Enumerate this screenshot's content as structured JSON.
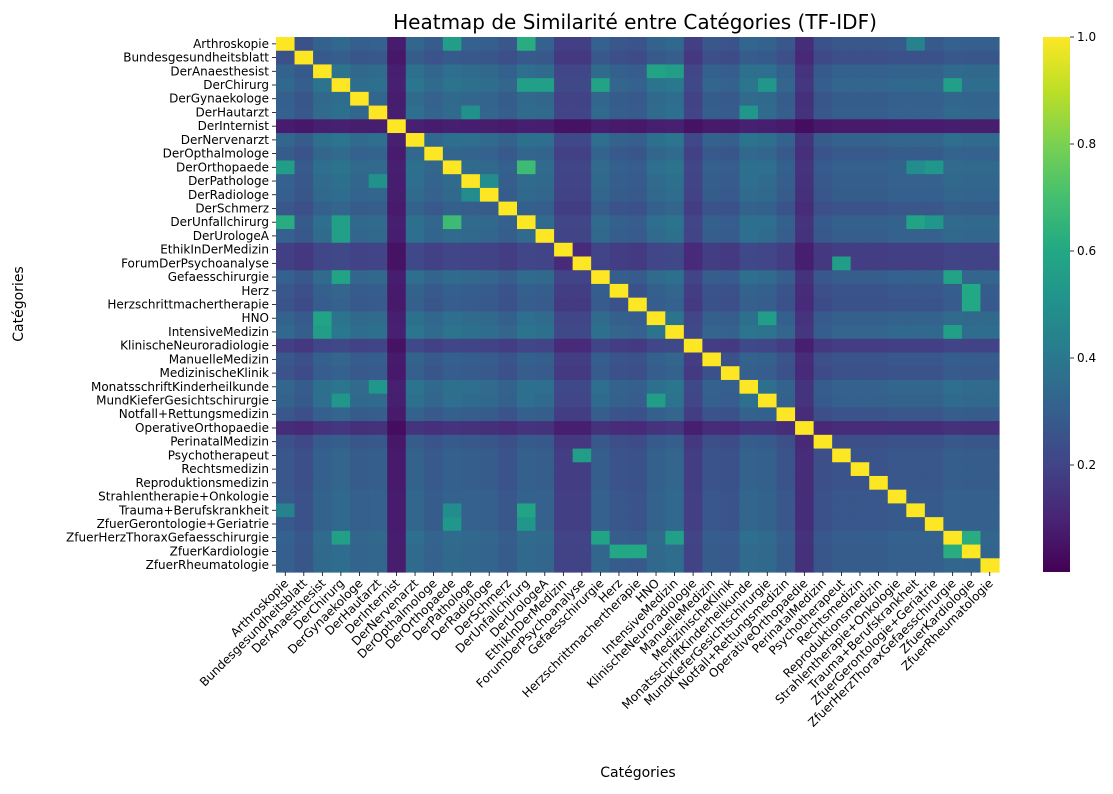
{
  "chart_data": {
    "type": "heatmap",
    "title": "Heatmap de Similarité entre Catégories (TF-IDF)",
    "xlabel": "Catégories",
    "ylabel": "Catégories",
    "colormap": "viridis",
    "colorbar": {
      "min": 0.0,
      "max": 1.0,
      "ticks": [
        "0.2",
        "0.4",
        "0.6",
        "0.8",
        "1.0"
      ]
    },
    "categories": [
      "Arthroskopie",
      "Bundesgesundheitsblatt",
      "DerAnaesthesist",
      "DerChirurg",
      "DerGynaekologe",
      "DerHautarzt",
      "DerInternist",
      "DerNervenarzt",
      "DerOpthalmologe",
      "DerOrthopaede",
      "DerPathologe",
      "DerRadiologe",
      "DerSchmerz",
      "DerUnfallchirurg",
      "DerUrologeA",
      "EthikInDerMedizin",
      "ForumDerPsychoanalyse",
      "Gefaesschirurgie",
      "Herz",
      "Herzschrittmachertherapie",
      "HNO",
      "IntensiveMedizin",
      "KlinischeNeuroradiologie",
      "ManuelleMedizin",
      "MedizinischeKlinik",
      "MonatsschriftKinderheilkunde",
      "MundKieferGesichtschirurgie",
      "Notfall+Rettungsmedizin",
      "OperativeOrthopaedie",
      "PerinatalMedizin",
      "Psychotherapeut",
      "Rechtsmedizin",
      "Reproduktionsmedizin",
      "Strahlentherapie+Onkologie",
      "Trauma+Berufskrankheit",
      "ZfuerGerontologie+Geriatrie",
      "ZfuerHerzThoraxGefaesschirurgie",
      "ZfuerKardiologie",
      "ZfuerRheumatologie"
    ],
    "base_similarity": [
      0.28,
      0.22,
      0.36,
      0.4,
      0.32,
      0.34,
      0.02,
      0.38,
      0.3,
      0.36,
      0.34,
      0.32,
      0.26,
      0.36,
      0.34,
      0.12,
      0.12,
      0.34,
      0.26,
      0.24,
      0.36,
      0.4,
      0.12,
      0.26,
      0.24,
      0.38,
      0.36,
      0.26,
      0.06,
      0.22,
      0.26,
      0.26,
      0.26,
      0.28,
      0.28,
      0.28,
      0.34,
      0.32,
      0.32
    ],
    "diagonal": 1.0,
    "notable_pairs": [
      [
        "Arthroskopie",
        "DerOrthopaede",
        0.55
      ],
      [
        "Arthroskopie",
        "DerUnfallchirurg",
        0.62
      ],
      [
        "DerOrthopaede",
        "DerUnfallchirurg",
        0.68
      ],
      [
        "DerUnfallchirurg",
        "Trauma+Berufskrankheit",
        0.58
      ],
      [
        "Arthroskopie",
        "Trauma+Berufskrankheit",
        0.44
      ],
      [
        "DerOrthopaede",
        "Trauma+Berufskrankheit",
        0.48
      ],
      [
        "DerChirurg",
        "Gefaesschirurgie",
        0.58
      ],
      [
        "DerChirurg",
        "DerUnfallchirurg",
        0.56
      ],
      [
        "DerChirurg",
        "DerUrologeA",
        0.56
      ],
      [
        "DerChirurg",
        "ZfuerHerzThoraxGefaesschirurgie",
        0.56
      ],
      [
        "DerChirurg",
        "MundKieferGesichtschirurgie",
        0.52
      ],
      [
        "DerAnaesthesist",
        "IntensiveMedizin",
        0.55
      ],
      [
        "DerAnaesthesist",
        "HNO",
        0.58
      ],
      [
        "HNO",
        "MundKieferGesichtschirurgie",
        0.55
      ],
      [
        "DerHautarzt",
        "MonatsschriftKinderheilkunde",
        0.52
      ],
      [
        "ForumDerPsychoanalyse",
        "Psychotherapeut",
        0.55
      ],
      [
        "Herz",
        "ZfuerKardiologie",
        0.6
      ],
      [
        "Herzschrittmachertherapie",
        "ZfuerKardiologie",
        0.6
      ],
      [
        "ZfuerHerzThoraxGefaesschirurgie",
        "ZfuerKardiologie",
        0.62
      ],
      [
        "Gefaesschirurgie",
        "ZfuerHerzThoraxGefaesschirurgie",
        0.58
      ],
      [
        "IntensiveMedizin",
        "ZfuerHerzThoraxGefaesschirurgie",
        0.56
      ],
      [
        "DerOrthopaede",
        "ZfuerGerontologie+Geriatrie",
        0.52
      ],
      [
        "DerUnfallchirurg",
        "ZfuerGerontologie+Geriatrie",
        0.52
      ],
      [
        "DerPathologe",
        "DerRadiologe",
        0.48
      ],
      [
        "DerPathologe",
        "DerHautarzt",
        0.5
      ]
    ]
  }
}
